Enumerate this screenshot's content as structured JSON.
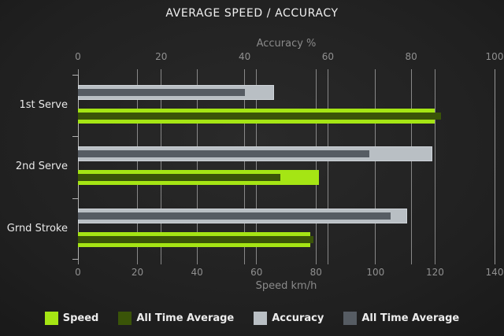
{
  "chart_data": {
    "type": "bar",
    "orientation": "horizontal",
    "title": "AVERAGE SPEED / ACCURACY",
    "categories": [
      "1st Serve",
      "2nd Serve",
      "Grnd Stroke"
    ],
    "axes": {
      "top": {
        "label": "Accuracy %",
        "ticks": [
          0,
          20,
          40,
          60,
          80,
          100
        ],
        "range": [
          0,
          100
        ]
      },
      "bottom": {
        "label": "Speed km/h",
        "ticks": [
          0,
          20,
          40,
          60,
          80,
          100,
          120,
          140
        ],
        "range": [
          0,
          140
        ]
      }
    },
    "series": [
      {
        "name": "Speed",
        "axis": "bottom",
        "role": "current",
        "color": "#a5e514",
        "values": [
          120,
          81,
          78
        ]
      },
      {
        "name": "All Time Average",
        "axis": "bottom",
        "role": "average",
        "color": "#3a5408",
        "values": [
          122,
          68,
          79
        ]
      },
      {
        "name": "Accuracy",
        "axis": "top",
        "role": "current",
        "color": "#b9bfc4",
        "values": [
          47,
          85,
          79
        ]
      },
      {
        "name": "All Time Average",
        "axis": "top",
        "role": "average",
        "color": "#565c63",
        "values": [
          40,
          70,
          75
        ]
      }
    ],
    "legend": [
      {
        "label": "Speed",
        "color": "#a5e514"
      },
      {
        "label": "All Time Average",
        "color": "#3a5408"
      },
      {
        "label": "Accuracy",
        "color": "#b9bfc4"
      },
      {
        "label": "All Time Average",
        "color": "#565c63"
      }
    ],
    "grid": true,
    "legend_position": "bottom",
    "colors": {
      "background": "#1f1f1f",
      "grid": "#9a9a9a",
      "text_muted": "#909090",
      "text_bright": "#ededed"
    }
  }
}
